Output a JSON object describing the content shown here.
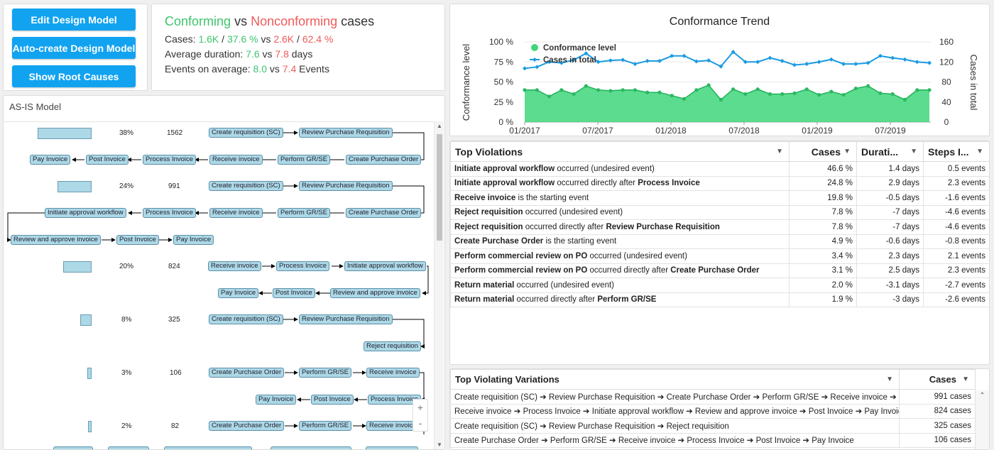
{
  "buttons": {
    "edit_design_model": "Edit Design Model",
    "auto_create_design_model": "Auto-create Design Model",
    "show_root_causes": "Show Root Causes"
  },
  "summary": {
    "conforming": "Conforming",
    "vs": "vs",
    "nonconforming": "Nonconforming",
    "cases_word": "cases",
    "cases_label": "Cases:",
    "conf_cases": "1.6K",
    "conf_pct": "37.6 %",
    "nonconf_cases": "2.6K",
    "nonconf_pct": "62.4 %",
    "avg_duration_label": "Average duration:",
    "conf_duration": "7.6",
    "nonconf_duration": "7.8",
    "days": "days",
    "events_label": "Events on average:",
    "conf_events": "8.0",
    "nonconf_events": "7.4",
    "events_word": "Events",
    "slash": "/"
  },
  "model": {
    "title": "AS-IS Model",
    "variants": [
      {
        "pct": "38%",
        "count": "1562",
        "bar": 0.38
      },
      {
        "pct": "24%",
        "count": "991",
        "bar": 0.24
      },
      {
        "pct": "20%",
        "count": "824",
        "bar": 0.2
      },
      {
        "pct": "8%",
        "count": "325",
        "bar": 0.08
      },
      {
        "pct": "3%",
        "count": "106",
        "bar": 0.03
      },
      {
        "pct": "2%",
        "count": "82",
        "bar": 0.02
      }
    ],
    "v1": {
      "row1": [
        "Create requisition (SC)",
        "Review Purchase Requisition"
      ],
      "row2": [
        "Pay Invoice",
        "Post Invoice",
        "Process Invoice",
        "Receive invoice",
        "Perform GR/SE",
        "Create Purchase Order"
      ]
    },
    "v2": {
      "row1": [
        "Create requisition (SC)",
        "Review Purchase Requisition"
      ],
      "row2": [
        "Initiate approval workflow",
        "Process Invoice",
        "Receive invoice",
        "Perform GR/SE",
        "Create Purchase Order"
      ],
      "row3": [
        "Review and approve invoice",
        "Post Invoice",
        "Pay Invoice"
      ]
    },
    "v3": {
      "row1": [
        "Receive invoice",
        "Process Invoice",
        "Initiate approval workflow"
      ],
      "row2": [
        "Pay Invoice",
        "Post Invoice",
        "Review and approve invoice"
      ]
    },
    "v4": {
      "row1": [
        "Create requisition (SC)",
        "Review Purchase Requisition"
      ],
      "row2": [
        "Reject requisition"
      ]
    },
    "v5": {
      "row1": [
        "Create Purchase Order",
        "Perform GR/SE",
        "Receive invoice"
      ],
      "row2": [
        "Pay Invoice",
        "Post Invoice",
        "Process Invoice"
      ]
    },
    "v6": {
      "row1": [
        "Create Purchase Order",
        "Perform GR/SE",
        "Receive invoice"
      ]
    },
    "zoom_in": "+",
    "zoom_out": "-"
  },
  "chart_data": {
    "type": "area",
    "title": "Conformance Trend",
    "ylabel_left": "Conformance level",
    "ylabel_right": "Cases in total",
    "y_left_ticks": [
      "100 %",
      "75 %",
      "50 %",
      "25 %",
      "0 %"
    ],
    "y_right_ticks": [
      "160",
      "120",
      "80",
      "40",
      "0"
    ],
    "x_ticks": [
      "01/2017",
      "07/2017",
      "01/2018",
      "07/2018",
      "01/2019",
      "07/2019"
    ],
    "ylim_left": [
      0,
      100
    ],
    "ylim_right": [
      0,
      160
    ],
    "legend": "top-left",
    "series": [
      {
        "name": "Conformance level",
        "axis": "left",
        "color": "#3ed67a",
        "values": [
          40,
          40,
          32,
          40,
          35,
          45,
          40,
          39,
          40,
          40,
          37,
          37,
          33,
          29,
          40,
          46,
          28,
          41,
          35,
          41,
          35,
          35,
          36,
          41,
          34,
          38,
          34,
          42,
          45,
          36,
          35,
          28,
          40,
          40
        ]
      },
      {
        "name": "Cases in total",
        "axis": "right",
        "color": "#1a9be3",
        "values": [
          107,
          110,
          120,
          118,
          124,
          137,
          120,
          123,
          124,
          116,
          122,
          122,
          132,
          132,
          121,
          123,
          111,
          140,
          120,
          120,
          128,
          122,
          114,
          116,
          120,
          125,
          116,
          116,
          118,
          132,
          128,
          125,
          120,
          118
        ]
      }
    ]
  },
  "violations": {
    "headers": [
      "Top Violations",
      "Cases",
      "Durati...",
      "Steps I..."
    ],
    "rows": [
      {
        "b1": "Initiate approval workflow",
        "t1": " occurred (undesired event)",
        "b2": "",
        "t2": "",
        "cases": "46.6 %",
        "dur": "1.4 days",
        "steps": "0.5 events"
      },
      {
        "b1": "Initiate approval workflow",
        "t1": " occurred directly after ",
        "b2": "Process Invoice",
        "t2": "",
        "cases": "24.8 %",
        "dur": "2.9 days",
        "steps": "2.3 events"
      },
      {
        "b1": "Receive invoice",
        "t1": " is the starting event",
        "b2": "",
        "t2": "",
        "cases": "19.8 %",
        "dur": "-0.5 days",
        "steps": "-1.6 events"
      },
      {
        "b1": "Reject requisition",
        "t1": " occurred (undesired event)",
        "b2": "",
        "t2": "",
        "cases": "7.8 %",
        "dur": "-7 days",
        "steps": "-4.6 events"
      },
      {
        "b1": "Reject requisition",
        "t1": " occurred directly after ",
        "b2": "Review Purchase Requisition",
        "t2": "",
        "cases": "7.8 %",
        "dur": "-7 days",
        "steps": "-4.6 events"
      },
      {
        "b1": "Create Purchase Order",
        "t1": " is the starting event",
        "b2": "",
        "t2": "",
        "cases": "4.9 %",
        "dur": "-0.6 days",
        "steps": "-0.8 events"
      },
      {
        "b1": "Perform commercial review on PO",
        "t1": " occurred (undesired event)",
        "b2": "",
        "t2": "",
        "cases": "3.4 %",
        "dur": "2.3 days",
        "steps": "2.1 events"
      },
      {
        "b1": "Perform commercial review on PO",
        "t1": " occurred directly after ",
        "b2": "Create Purchase Order",
        "t2": "",
        "cases": "3.1 %",
        "dur": "2.5 days",
        "steps": "2.3 events"
      },
      {
        "b1": "Return material",
        "t1": " occurred (undesired event)",
        "b2": "",
        "t2": "",
        "cases": "2.0 %",
        "dur": "-3.1 days",
        "steps": "-2.7 events"
      },
      {
        "b1": "Return material",
        "t1": " occurred directly after ",
        "b2": "Perform GR/SE",
        "t2": "",
        "cases": "1.9 %",
        "dur": "-3 days",
        "steps": "-2.6 events"
      }
    ]
  },
  "variations": {
    "headers": [
      "Top Violating Variations",
      "Cases"
    ],
    "rows": [
      {
        "path": "Create requisition (SC) ➔ Review Purchase Requisition ➔ Create Purchase Order ➔ Perform GR/SE ➔ Receive invoice ➔ Process Invoice",
        "cases": "991 cases"
      },
      {
        "path": "Receive invoice ➔ Process Invoice ➔ Initiate approval workflow ➔ Review and approve invoice ➔ Post Invoice ➔ Pay Invoice",
        "cases": "824 cases"
      },
      {
        "path": "Create requisition (SC) ➔ Review Purchase Requisition ➔ Reject requisition",
        "cases": "325 cases"
      },
      {
        "path": "Create Purchase Order ➔ Perform GR/SE ➔ Receive invoice ➔ Process Invoice ➔ Post Invoice ➔ Pay Invoice",
        "cases": "106 cases"
      }
    ]
  },
  "colors": {
    "accent": "#12a3f0",
    "conforming": "#3ec46d",
    "nonconforming": "#f05a5a",
    "node_fill": "#add8e6"
  }
}
